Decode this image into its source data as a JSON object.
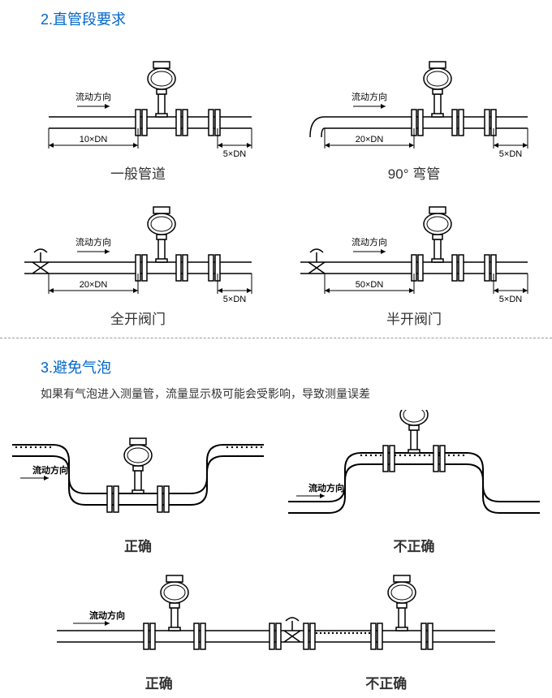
{
  "section2": {
    "title": "2.直管段要求",
    "diagrams": [
      {
        "flow_label": "流动方向",
        "upstream": "10×DN",
        "downstream": "5×DN",
        "caption": "一般管道",
        "inlet": "straight"
      },
      {
        "flow_label": "流动方向",
        "upstream": "20×DN",
        "downstream": "5×DN",
        "caption": "90° 弯管",
        "inlet": "bend"
      },
      {
        "flow_label": "流动方向",
        "upstream": "20×DN",
        "downstream": "5×DN",
        "caption": "全开阀门",
        "inlet": "valve"
      },
      {
        "flow_label": "流动方向",
        "upstream": "50×DN",
        "downstream": "5×DN",
        "caption": "半开阀门",
        "inlet": "valve"
      }
    ]
  },
  "section3": {
    "title": "3.避免气泡",
    "subtitle": "如果有气泡进入测量管，流量显示极可能会受影响，导致测量误差",
    "flow_label": "流动方向",
    "dip_correct": "正确",
    "hump_incorrect": "不正确",
    "before_valve_correct": "正确",
    "after_valve_incorrect": "不正确"
  },
  "style": {
    "title_color": "#0066cc",
    "stroke": "#000000",
    "stroke_width": 1.5,
    "pipe_width": 14,
    "flange_height": 32,
    "flange_width": 6,
    "sensor_stem_height": 28,
    "font_flow": 11,
    "font_dim": 11,
    "font_caption": 17,
    "font_bold_flow": 11
  }
}
